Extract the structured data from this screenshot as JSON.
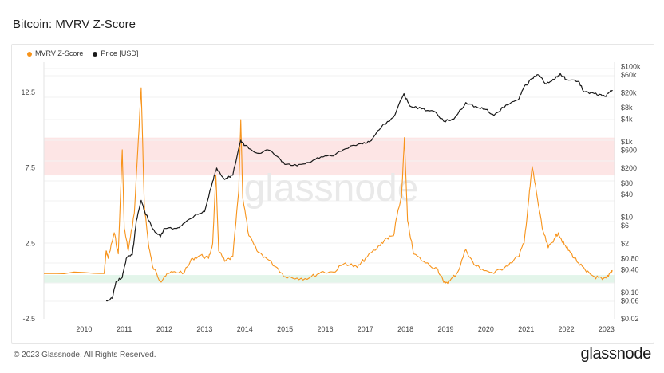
{
  "title": "Bitcoin: MVRV Z-Score",
  "footer": {
    "copyright": "© 2023 Glassnode. All Rights Reserved.",
    "brand": "glassnode"
  },
  "watermark": "glassnode",
  "colors": {
    "zscore": "#f7931a",
    "price": "#1a1a1a",
    "red_band": "#fde5e5",
    "green_band": "#e3f5ea"
  },
  "chart_data": {
    "type": "line",
    "title": "Bitcoin: MVRV Z-Score",
    "x_ticks": [
      "2010",
      "2011",
      "2012",
      "2013",
      "2014",
      "2015",
      "2016",
      "2017",
      "2018",
      "2019",
      "2020",
      "2021",
      "2022",
      "2023"
    ],
    "left_axis": {
      "ticks": [
        "12.5",
        "7.5",
        "2.5",
        "-2.5"
      ],
      "values": [
        12.5,
        7.5,
        2.5,
        -2.5
      ],
      "ylim": [
        -2.5,
        14.5
      ]
    },
    "right_axis": {
      "scale": "log",
      "ticks": [
        "$100k",
        "$60k",
        "$20k",
        "$8k",
        "$4k",
        "$1k",
        "$600",
        "$200",
        "$80",
        "$40",
        "$10",
        "$6",
        "$2",
        "$0.80",
        "$0.40",
        "$0.10",
        "$0.06",
        "$0.02"
      ],
      "values": [
        100000,
        60000,
        20000,
        8000,
        4000,
        1000,
        600,
        200,
        80,
        40,
        10,
        6,
        2,
        0.8,
        0.4,
        0.1,
        0.06,
        0.02
      ]
    },
    "bands": [
      {
        "axis": "left",
        "from": 7,
        "to": 9.5,
        "color": "red"
      },
      {
        "axis": "left",
        "from": -0.1,
        "to": 0.4,
        "color": "green"
      }
    ],
    "series": [
      {
        "name": "MVRV Z-Score",
        "axis": "left",
        "points": [
          [
            2009.0,
            0.5
          ],
          [
            2010.5,
            0.5
          ],
          [
            2010.55,
            2.0
          ],
          [
            2010.6,
            1.5
          ],
          [
            2010.75,
            3.2
          ],
          [
            2010.85,
            1.8
          ],
          [
            2010.95,
            8.7
          ],
          [
            2011.0,
            3.5
          ],
          [
            2011.1,
            2.0
          ],
          [
            2011.25,
            4.5
          ],
          [
            2011.35,
            9.3
          ],
          [
            2011.42,
            12.8
          ],
          [
            2011.5,
            5.0
          ],
          [
            2011.6,
            2.5
          ],
          [
            2011.7,
            1.0
          ],
          [
            2011.9,
            0.0
          ],
          [
            2012.0,
            0.3
          ],
          [
            2012.2,
            0.6
          ],
          [
            2012.5,
            0.6
          ],
          [
            2012.7,
            1.5
          ],
          [
            2012.9,
            1.7
          ],
          [
            2013.1,
            1.5
          ],
          [
            2013.2,
            2.5
          ],
          [
            2013.28,
            7.0
          ],
          [
            2013.35,
            2.0
          ],
          [
            2013.5,
            1.3
          ],
          [
            2013.7,
            1.6
          ],
          [
            2013.85,
            6.0
          ],
          [
            2013.9,
            10.7
          ],
          [
            2013.95,
            5.5
          ],
          [
            2014.1,
            3.0
          ],
          [
            2014.3,
            2.0
          ],
          [
            2014.5,
            1.6
          ],
          [
            2014.8,
            0.9
          ],
          [
            2015.0,
            0.3
          ],
          [
            2015.3,
            0.2
          ],
          [
            2015.6,
            0.2
          ],
          [
            2015.9,
            0.6
          ],
          [
            2016.2,
            0.6
          ],
          [
            2016.5,
            1.2
          ],
          [
            2016.8,
            0.9
          ],
          [
            2017.0,
            1.5
          ],
          [
            2017.3,
            2.2
          ],
          [
            2017.5,
            2.8
          ],
          [
            2017.7,
            3.0
          ],
          [
            2017.8,
            4.5
          ],
          [
            2017.9,
            5.5
          ],
          [
            2017.97,
            9.5
          ],
          [
            2018.05,
            4.0
          ],
          [
            2018.2,
            1.8
          ],
          [
            2018.5,
            1.2
          ],
          [
            2018.8,
            0.8
          ],
          [
            2018.95,
            -0.1
          ],
          [
            2019.1,
            0.0
          ],
          [
            2019.3,
            0.6
          ],
          [
            2019.5,
            2.1
          ],
          [
            2019.7,
            1.1
          ],
          [
            2019.9,
            0.8
          ],
          [
            2020.2,
            0.5
          ],
          [
            2020.5,
            1.0
          ],
          [
            2020.8,
            1.6
          ],
          [
            2020.95,
            2.5
          ],
          [
            2021.05,
            5.0
          ],
          [
            2021.15,
            7.6
          ],
          [
            2021.25,
            6.0
          ],
          [
            2021.4,
            3.5
          ],
          [
            2021.55,
            2.2
          ],
          [
            2021.7,
            2.8
          ],
          [
            2021.8,
            3.2
          ],
          [
            2021.95,
            2.4
          ],
          [
            2022.1,
            1.9
          ],
          [
            2022.3,
            1.2
          ],
          [
            2022.5,
            0.6
          ],
          [
            2022.7,
            0.3
          ],
          [
            2022.9,
            0.1
          ],
          [
            2023.0,
            0.2
          ],
          [
            2023.1,
            0.6
          ],
          [
            2023.15,
            0.7
          ]
        ]
      },
      {
        "name": "Price [USD]",
        "axis": "right",
        "points": [
          [
            2010.55,
            0.06
          ],
          [
            2010.7,
            0.07
          ],
          [
            2010.8,
            0.2
          ],
          [
            2010.95,
            0.25
          ],
          [
            2011.05,
            0.8
          ],
          [
            2011.2,
            1
          ],
          [
            2011.3,
            8
          ],
          [
            2011.42,
            28
          ],
          [
            2011.5,
            15
          ],
          [
            2011.7,
            5
          ],
          [
            2011.9,
            3
          ],
          [
            2012.0,
            5
          ],
          [
            2012.3,
            5
          ],
          [
            2012.5,
            7
          ],
          [
            2012.8,
            12
          ],
          [
            2013.0,
            14
          ],
          [
            2013.2,
            90
          ],
          [
            2013.3,
            200
          ],
          [
            2013.5,
            100
          ],
          [
            2013.7,
            130
          ],
          [
            2013.9,
            1100
          ],
          [
            2014.0,
            800
          ],
          [
            2014.3,
            500
          ],
          [
            2014.6,
            600
          ],
          [
            2014.9,
            320
          ],
          [
            2015.0,
            250
          ],
          [
            2015.3,
            230
          ],
          [
            2015.6,
            280
          ],
          [
            2015.9,
            400
          ],
          [
            2016.2,
            420
          ],
          [
            2016.5,
            650
          ],
          [
            2016.9,
            900
          ],
          [
            2017.1,
            1000
          ],
          [
            2017.4,
            2500
          ],
          [
            2017.7,
            4500
          ],
          [
            2017.96,
            19000
          ],
          [
            2018.1,
            9000
          ],
          [
            2018.4,
            7500
          ],
          [
            2018.7,
            6500
          ],
          [
            2018.95,
            3500
          ],
          [
            2019.2,
            4000
          ],
          [
            2019.5,
            11000
          ],
          [
            2019.8,
            8000
          ],
          [
            2020.0,
            7200
          ],
          [
            2020.2,
            5000
          ],
          [
            2020.5,
            9500
          ],
          [
            2020.8,
            13000
          ],
          [
            2020.95,
            29000
          ],
          [
            2021.15,
            48000
          ],
          [
            2021.3,
            60000
          ],
          [
            2021.5,
            34000
          ],
          [
            2021.7,
            45000
          ],
          [
            2021.85,
            65000
          ],
          [
            2022.0,
            45000
          ],
          [
            2022.3,
            40000
          ],
          [
            2022.45,
            21000
          ],
          [
            2022.7,
            19000
          ],
          [
            2022.9,
            16500
          ],
          [
            2023.0,
            17000
          ],
          [
            2023.1,
            23000
          ],
          [
            2023.15,
            22500
          ]
        ]
      }
    ],
    "legend_position": "top-left",
    "grid": true
  }
}
